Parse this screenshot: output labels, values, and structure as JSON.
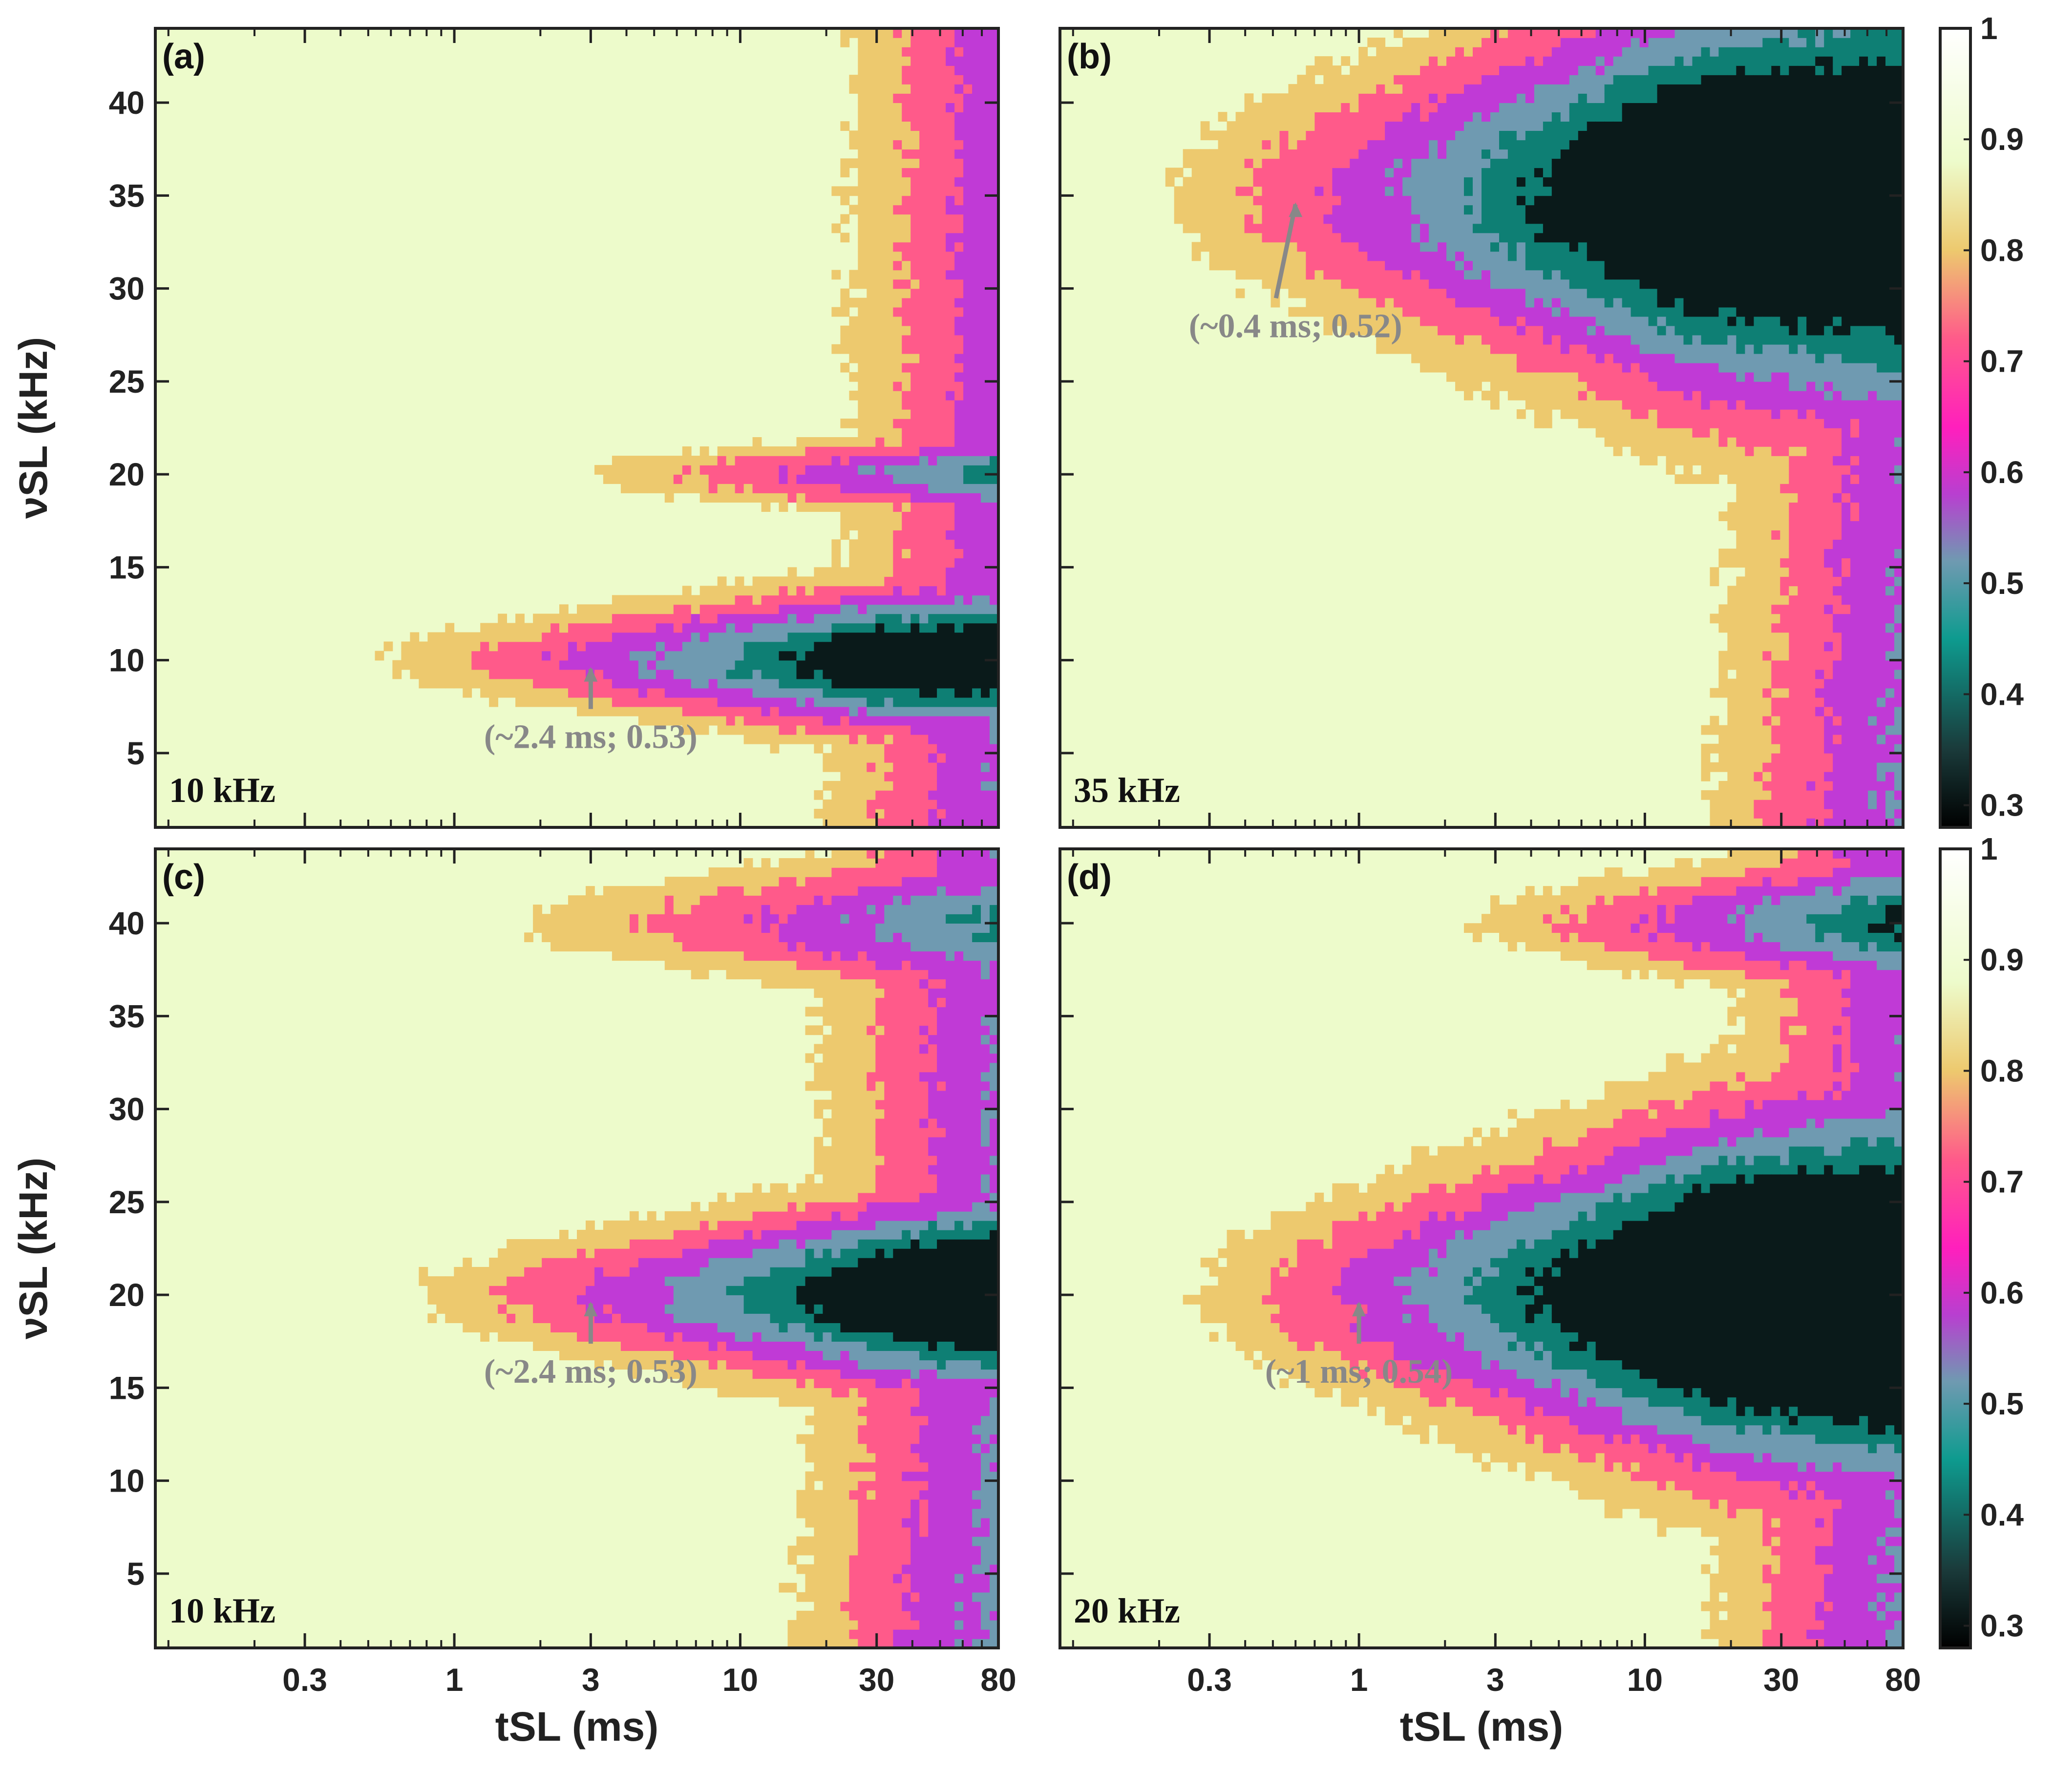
{
  "chart_data": [
    {
      "panel": "(a)",
      "type": "contour",
      "label": "10 kHz",
      "annotation": {
        "text": "(~2.4 ms; 0.53)",
        "x": 3.0,
        "y": 10
      },
      "resonance_bands": [
        {
          "center": 10,
          "half_width": 1.1,
          "onset": 0.2,
          "grow": 0.11
        },
        {
          "center": 20,
          "half_width": 0.7,
          "onset": 0.95,
          "grow": 0.09
        }
      ],
      "edge": {
        "t80": 15,
        "t70": 34,
        "t60": 62,
        "t50": 78
      },
      "x": {
        "label": "tSL (ms)",
        "scale": "log",
        "lim": [
          0.09,
          80
        ],
        "ticks": [
          0.3,
          1,
          3,
          10,
          30,
          80
        ],
        "tick_labels": [
          "0.3",
          "1",
          "3",
          "10",
          "30",
          "80"
        ]
      },
      "y": {
        "label": "νSL (kHz)",
        "lim": [
          1,
          44
        ],
        "ticks": [
          5,
          10,
          15,
          20,
          25,
          30,
          35,
          40
        ],
        "tick_labels": [
          "5",
          "10",
          "15",
          "20",
          "25",
          "30",
          "35",
          "40"
        ]
      }
    },
    {
      "panel": "(b)",
      "type": "contour",
      "label": "35 kHz",
      "annotation": {
        "text": "(~0.4 ms; 0.52)",
        "x": 0.6,
        "y": 35
      },
      "resonance_bands": [
        {
          "center": 35,
          "half_width": 3.0,
          "onset": 0.09,
          "grow": 0.14
        }
      ],
      "edge": {
        "t80": 13,
        "t70": 35,
        "t60": 70,
        "t50": 200
      },
      "x": {
        "label": "tSL (ms)",
        "scale": "log",
        "lim": [
          0.09,
          80
        ],
        "ticks": [
          0.3,
          1,
          3,
          10,
          30,
          80
        ],
        "tick_labels": [
          "0.3",
          "1",
          "3",
          "10",
          "30",
          "80"
        ]
      },
      "y": {
        "label": "",
        "lim": [
          1,
          44
        ],
        "ticks": [
          5,
          10,
          15,
          20,
          25,
          30,
          35,
          40
        ],
        "tick_labels": []
      }
    },
    {
      "panel": "(c)",
      "type": "contour",
      "label": "10 kHz",
      "annotation": {
        "text": "(~2.4 ms; 0.53)",
        "x": 3.0,
        "y": 20
      },
      "resonance_bands": [
        {
          "center": 20,
          "half_width": 1.5,
          "onset": 0.3,
          "grow": 0.13
        },
        {
          "center": 40,
          "half_width": 1.2,
          "onset": 0.5,
          "grow": 0.06
        }
      ],
      "edge": {
        "t80": 12,
        "t70": 32,
        "t60": 55,
        "t50": 75
      },
      "x": {
        "label": "tSL (ms)",
        "scale": "log",
        "lim": [
          0.09,
          80
        ],
        "ticks": [
          0.3,
          1,
          3,
          10,
          30,
          80
        ],
        "tick_labels": [
          "0.3",
          "1",
          "3",
          "10",
          "30",
          "80"
        ]
      },
      "y": {
        "label": "νSL (kHz)",
        "lim": [
          1,
          44
        ],
        "ticks": [
          5,
          10,
          15,
          20,
          25,
          30,
          35,
          40
        ],
        "tick_labels": [
          "5",
          "10",
          "15",
          "20",
          "25",
          "30",
          "35",
          "40"
        ]
      }
    },
    {
      "panel": "(d)",
      "type": "contour",
      "label": "20 kHz",
      "annotation": {
        "text": "(~1 ms; 0.54)",
        "x": 1.0,
        "y": 20
      },
      "resonance_bands": [
        {
          "center": 20,
          "half_width": 2.6,
          "onset": 0.12,
          "grow": 0.16
        },
        {
          "center": 40,
          "half_width": 1.2,
          "onset": 0.9,
          "grow": 0.11
        }
      ],
      "edge": {
        "t80": 13,
        "t70": 34,
        "t60": 62,
        "t50": 200
      },
      "x": {
        "label": "tSL (ms)",
        "scale": "log",
        "lim": [
          0.09,
          80
        ],
        "ticks": [
          0.3,
          1,
          3,
          10,
          30,
          80
        ],
        "tick_labels": [
          "0.3",
          "1",
          "3",
          "10",
          "30",
          "80"
        ]
      },
      "y": {
        "label": "",
        "lim": [
          1,
          44
        ],
        "ticks": [
          5,
          10,
          15,
          20,
          25,
          30,
          35,
          40
        ],
        "tick_labels": []
      }
    }
  ],
  "colorbar": {
    "ticks": [
      0.3,
      0.4,
      0.5,
      0.6,
      0.7,
      0.8,
      0.9,
      1
    ],
    "tick_labels": [
      "0.3",
      "0.4",
      "0.5",
      "0.6",
      "0.7",
      "0.8",
      "0.9",
      "1"
    ],
    "lim": [
      0.28,
      1.0
    ],
    "stops": [
      {
        "v": 0.28,
        "color": "#000000"
      },
      {
        "v": 0.35,
        "color": "#1a3a3a"
      },
      {
        "v": 0.45,
        "color": "#0e9b8f"
      },
      {
        "v": 0.52,
        "color": "#6f9ab1"
      },
      {
        "v": 0.58,
        "color": "#b83fd0"
      },
      {
        "v": 0.64,
        "color": "#ff1fbd"
      },
      {
        "v": 0.72,
        "color": "#ff5a8a"
      },
      {
        "v": 0.8,
        "color": "#edc96e"
      },
      {
        "v": 0.88,
        "color": "#edfbcb"
      },
      {
        "v": 1.0,
        "color": "#ffffff"
      }
    ]
  },
  "level_colors": {
    "bg": "#edfbcb",
    "l80": "#edc96e",
    "l70": "#ff5a8a",
    "l60": "#c03ad6",
    "l50": "#6f9ab1",
    "l40": "#0e7f74",
    "l30": "#0a1a1a",
    "annotation": "#888888"
  }
}
